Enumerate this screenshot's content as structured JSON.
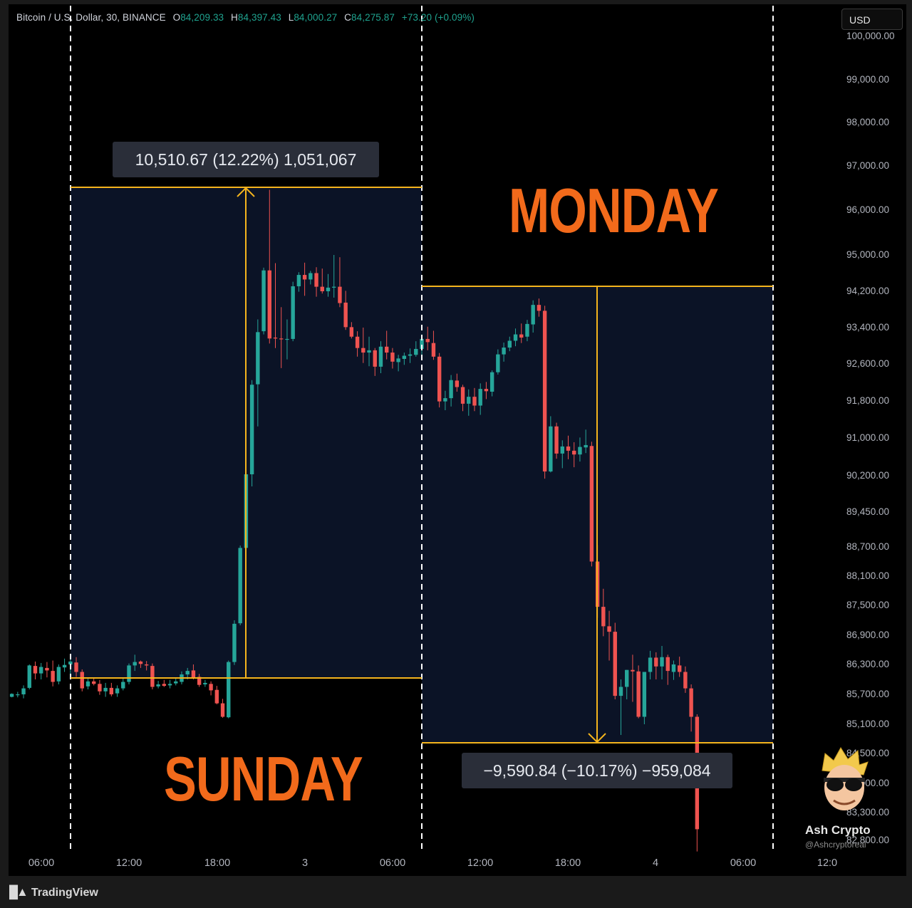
{
  "legend": {
    "symbol": "Bitcoin / U.S. Dollar, 30, BINANCE",
    "open_key": "O",
    "open": "84,209.33",
    "high_key": "H",
    "high": "84,397.43",
    "low_key": "L",
    "low": "84,000.27",
    "close_key": "C",
    "close": "84,275.87",
    "change": "+73.20 (+0.09%)"
  },
  "currency_button": "USD",
  "measure_up": "10,510.67 (12.22%) 1,051,067",
  "measure_down": "−9,590.84 (−10.17%) −959,084",
  "labels": {
    "monday": "MONDAY",
    "sunday": "SUNDAY"
  },
  "price_axis": [
    "100,000.00",
    "99,000.00",
    "98,000.00",
    "97,000.00",
    "96,000.00",
    "95,000.00",
    "94,200.00",
    "93,400.00",
    "92,600.00",
    "91,800.00",
    "91,000.00",
    "90,200.00",
    "89,450.00",
    "88,700.00",
    "88,100.00",
    "87,500.00",
    "86,900.00",
    "86,300.00",
    "85,700.00",
    "85,100.00",
    "84,500.00",
    "83,900.00",
    "83,300.00",
    "82,800.00"
  ],
  "time_axis": [
    "06:00",
    "12:00",
    "18:00",
    "3",
    "06:00",
    "12:00",
    "18:00",
    "4",
    "06:00",
    "12:0"
  ],
  "branding": {
    "logo": "TradingView",
    "watermark_name": "Ash Crypto",
    "watermark_handle": "@Ashcryptoreal"
  },
  "colors": {
    "up": "#26a69a",
    "down": "#ef5350",
    "accent": "#f5b41d",
    "label": "#f26a1b",
    "zone": "#0b1326"
  },
  "chart_data": {
    "type": "candlestick",
    "interval": "30",
    "symbol": "BTCUSD",
    "x_unit": "30-minute bars",
    "ylim": [
      82500,
      100300
    ],
    "y_ticks": [
      100000,
      99000,
      98000,
      97000,
      96000,
      95000,
      94200,
      93400,
      92600,
      91800,
      91000,
      90200,
      89450,
      88700,
      88100,
      87500,
      86900,
      86300,
      85700,
      85100,
      84500,
      83900,
      83300,
      82800
    ],
    "measurements": [
      {
        "label": "SUNDAY",
        "from": 85950,
        "to": 96460,
        "change": 10510.67,
        "percent": 12.22
      },
      {
        "label": "MONDAY",
        "from": 94300,
        "to": 84710,
        "change": -9590.84,
        "percent": -10.17
      }
    ],
    "candles": [
      [
        85650,
        85720,
        85640,
        85710
      ],
      [
        85690,
        85750,
        85640,
        85700
      ],
      [
        85700,
        85880,
        85620,
        85820
      ],
      [
        85830,
        86300,
        85800,
        86280
      ],
      [
        86270,
        86360,
        86000,
        86120
      ],
      [
        86120,
        86330,
        86000,
        86250
      ],
      [
        86230,
        86350,
        86040,
        86180
      ],
      [
        86170,
        86380,
        85860,
        85950
      ],
      [
        85960,
        86300,
        85900,
        86250
      ],
      [
        86240,
        86420,
        86150,
        86290
      ],
      [
        86300,
        86420,
        86100,
        86360
      ],
      [
        86340,
        86450,
        86050,
        86150
      ],
      [
        86150,
        86200,
        85760,
        85820
      ],
      [
        85860,
        86020,
        85800,
        85960
      ],
      [
        85960,
        86040,
        85880,
        85910
      ],
      [
        85910,
        85990,
        85690,
        85760
      ],
      [
        85760,
        85930,
        85650,
        85830
      ],
      [
        85830,
        85930,
        85660,
        85700
      ],
      [
        85720,
        85880,
        85650,
        85820
      ],
      [
        85820,
        86020,
        85780,
        85950
      ],
      [
        85950,
        86320,
        85900,
        86280
      ],
      [
        86280,
        86500,
        86170,
        86350
      ],
      [
        86360,
        86380,
        86230,
        86310
      ],
      [
        86300,
        86370,
        86180,
        86280
      ],
      [
        86270,
        86320,
        85800,
        85850
      ],
      [
        85860,
        85970,
        85820,
        85900
      ],
      [
        85910,
        85990,
        85850,
        85870
      ],
      [
        85880,
        85990,
        85820,
        85910
      ],
      [
        85920,
        86030,
        85880,
        85960
      ],
      [
        85950,
        86160,
        85900,
        86100
      ],
      [
        86100,
        86230,
        86000,
        86170
      ],
      [
        86180,
        86300,
        86000,
        86030
      ],
      [
        86050,
        86110,
        85850,
        85890
      ],
      [
        85900,
        85990,
        85850,
        85930
      ],
      [
        85910,
        85960,
        85680,
        85780
      ],
      [
        85790,
        85870,
        85500,
        85520
      ],
      [
        85520,
        85610,
        85230,
        85250
      ],
      [
        85240,
        86380,
        85220,
        86350
      ],
      [
        86350,
        87200,
        86290,
        87130
      ],
      [
        87140,
        88730,
        87100,
        88680
      ],
      [
        88680,
        90300,
        88600,
        90230
      ],
      [
        90230,
        92250,
        89980,
        92150
      ],
      [
        92160,
        93580,
        91250,
        93300
      ],
      [
        93320,
        94720,
        93250,
        94660
      ],
      [
        94660,
        96460,
        93050,
        93160
      ],
      [
        93180,
        94820,
        92950,
        93160
      ],
      [
        93160,
        93850,
        92510,
        93150
      ],
      [
        93150,
        93580,
        92700,
        93150
      ],
      [
        93150,
        94410,
        93100,
        94310
      ],
      [
        94310,
        94620,
        94190,
        94560
      ],
      [
        94560,
        94830,
        94100,
        94460
      ],
      [
        94460,
        94650,
        94350,
        94600
      ],
      [
        94600,
        94730,
        94080,
        94300
      ],
      [
        94300,
        94700,
        94150,
        94200
      ],
      [
        94200,
        94580,
        94080,
        94280
      ],
      [
        94280,
        95000,
        94060,
        94300
      ],
      [
        94300,
        94950,
        93850,
        93940
      ],
      [
        93950,
        94210,
        93350,
        93410
      ],
      [
        93410,
        93520,
        93160,
        93200
      ],
      [
        93200,
        93320,
        92760,
        92950
      ],
      [
        92950,
        93400,
        92620,
        92850
      ],
      [
        92850,
        93200,
        92550,
        92900
      ],
      [
        92900,
        92950,
        92340,
        92540
      ],
      [
        92540,
        93100,
        92400,
        92980
      ],
      [
        92980,
        93330,
        92700,
        92850
      ],
      [
        92850,
        92950,
        92500,
        92650
      ],
      [
        92640,
        92800,
        92440,
        92720
      ],
      [
        92710,
        92850,
        92580,
        92780
      ],
      [
        92780,
        92940,
        92620,
        92810
      ],
      [
        92800,
        93100,
        92760,
        92930
      ],
      [
        92930,
        93250,
        92790,
        93150
      ],
      [
        93150,
        93420,
        92900,
        93080
      ],
      [
        93060,
        93330,
        92690,
        92760
      ],
      [
        92760,
        92840,
        91660,
        91790
      ],
      [
        91790,
        92020,
        91600,
        91860
      ],
      [
        91860,
        92360,
        91680,
        92250
      ],
      [
        92240,
        92390,
        92000,
        92100
      ],
      [
        92100,
        92150,
        91580,
        91740
      ],
      [
        91740,
        92050,
        91480,
        91890
      ],
      [
        91890,
        92080,
        91580,
        91700
      ],
      [
        91700,
        92180,
        91500,
        92060
      ],
      [
        92060,
        92210,
        91840,
        92010
      ],
      [
        92000,
        92460,
        91900,
        92420
      ],
      [
        92420,
        92920,
        92370,
        92810
      ],
      [
        92810,
        93070,
        92650,
        92960
      ],
      [
        92960,
        93200,
        92880,
        93110
      ],
      [
        93110,
        93380,
        92990,
        93250
      ],
      [
        93250,
        93490,
        93060,
        93180
      ],
      [
        93200,
        93570,
        93100,
        93480
      ],
      [
        93470,
        94000,
        93290,
        93900
      ],
      [
        93900,
        94040,
        93640,
        93770
      ],
      [
        93770,
        93880,
        90140,
        90290
      ],
      [
        90290,
        91470,
        90270,
        91250
      ],
      [
        91250,
        91330,
        90560,
        90670
      ],
      [
        90670,
        90950,
        90360,
        90820
      ],
      [
        90820,
        91050,
        90550,
        90730
      ],
      [
        90730,
        90910,
        90380,
        90650
      ],
      [
        90650,
        91010,
        90500,
        90810
      ],
      [
        90800,
        91180,
        90680,
        90850
      ],
      [
        90830,
        90920,
        88300,
        88400
      ],
      [
        88400,
        88740,
        87250,
        87470
      ],
      [
        87470,
        87840,
        86880,
        87080
      ],
      [
        87080,
        87390,
        86380,
        86970
      ],
      [
        86970,
        87150,
        85600,
        85670
      ],
      [
        85670,
        86000,
        84880,
        85850
      ],
      [
        85850,
        86190,
        85600,
        86190
      ],
      [
        86190,
        86500,
        85550,
        86160
      ],
      [
        86160,
        86280,
        85220,
        85250
      ],
      [
        85250,
        86000,
        85100,
        86150
      ],
      [
        86150,
        86580,
        86000,
        86440
      ],
      [
        86440,
        86550,
        86000,
        86260
      ],
      [
        86260,
        86680,
        86000,
        86450
      ],
      [
        86450,
        86500,
        85890,
        86170
      ],
      [
        86150,
        86380,
        85990,
        86300
      ],
      [
        86280,
        86460,
        86050,
        86150
      ],
      [
        86150,
        86260,
        85730,
        85820
      ],
      [
        85820,
        85900,
        84950,
        85250
      ],
      [
        85250,
        85300,
        82600,
        83000
      ]
    ]
  }
}
